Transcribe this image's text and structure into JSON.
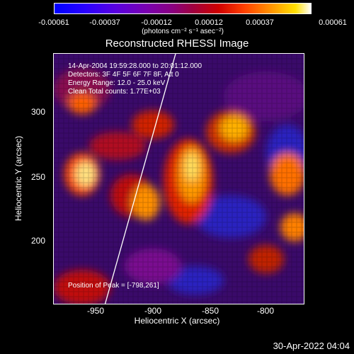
{
  "colorbar": {
    "ticks": [
      "-0.00061",
      "-0.00037",
      "-0.00012",
      "0.00012",
      "0.00037",
      "0.00061"
    ],
    "unit": "(photons cm⁻² s⁻¹ asec⁻²)"
  },
  "title": "Reconstructed RHESSI Image",
  "annotations": {
    "time": "14-Apr-2004 19:59:28.000 to 20:01:12.000",
    "detectors": "Detectors: 3F 4F 5F 6F 7F 8F, Att 0",
    "energy": "Energy Range: 12.0 - 25.0 keV",
    "clean": "Clean    Total counts: 1.77E+03",
    "peak": "Position of Peak = [-798,261]"
  },
  "axes": {
    "xlabel": "Heliocentric X (arcsec)",
    "ylabel": "Heliocentric Y (arcsec)",
    "xticks": [
      "-950",
      "-900",
      "-850",
      "-800"
    ],
    "yticks": [
      "300",
      "250",
      "200"
    ]
  },
  "footer": {
    "timestamp": "30-Apr-2022 04:04"
  }
}
